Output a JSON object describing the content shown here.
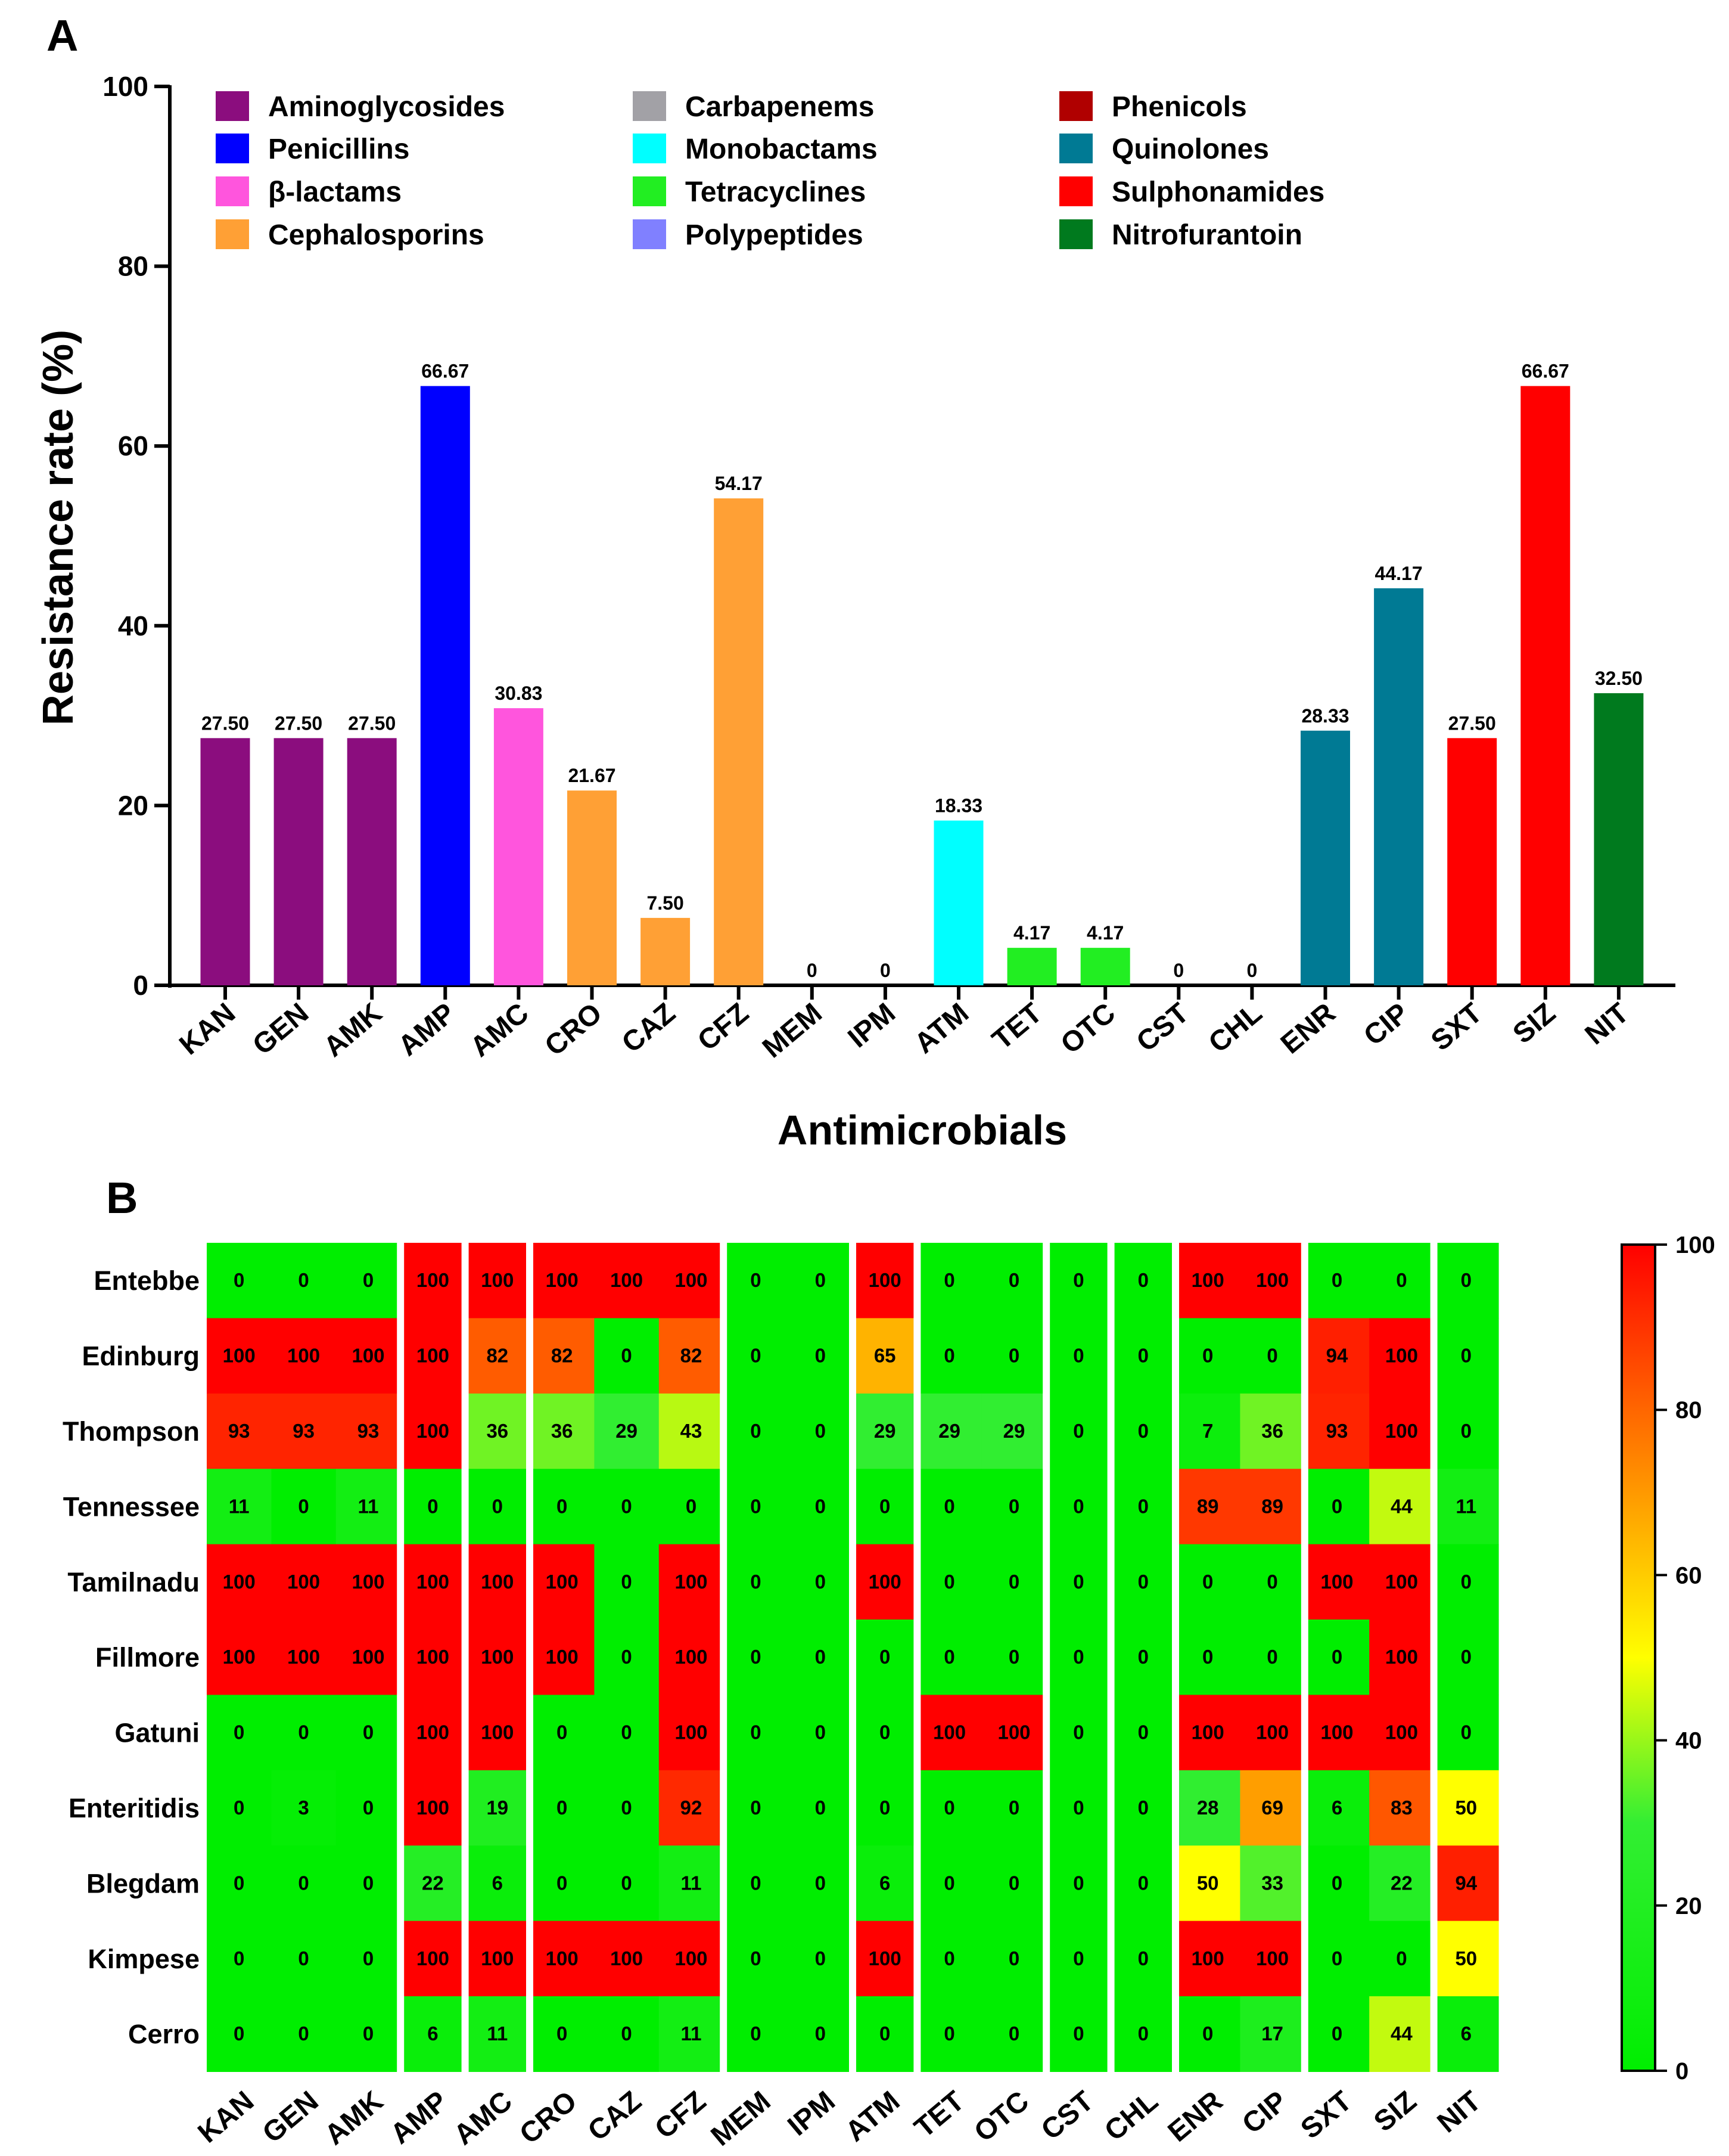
{
  "chart_data": [
    {
      "panel": "A",
      "type": "bar",
      "title": "",
      "xlabel": "Antimicrobials",
      "ylabel": "Resistance rate (%)",
      "ylim": [
        0,
        100
      ],
      "yticks": [
        0,
        20,
        40,
        60,
        80,
        100
      ],
      "grid": false,
      "categories": [
        "KAN",
        "GEN",
        "AMK",
        "AMP",
        "AMC",
        "CRO",
        "CAZ",
        "CFZ",
        "MEM",
        "IPM",
        "ATM",
        "TET",
        "OTC",
        "CST",
        "CHL",
        "ENR",
        "CIP",
        "SXT",
        "SIZ",
        "NIT"
      ],
      "values": [
        27.5,
        27.5,
        27.5,
        66.67,
        30.83,
        21.67,
        7.5,
        54.17,
        0,
        0,
        18.33,
        4.17,
        4.17,
        0,
        0,
        28.33,
        44.17,
        27.5,
        66.67,
        32.5
      ],
      "value_labels": [
        "27.50",
        "27.50",
        "27.50",
        "66.67",
        "30.83",
        "21.67",
        "7.50",
        "54.17",
        "0",
        "0",
        "18.33",
        "4.17",
        "4.17",
        "0",
        "0",
        "28.33",
        "44.17",
        "27.50",
        "66.67",
        "32.50"
      ],
      "classes": [
        "Aminoglycosides",
        "Aminoglycosides",
        "Aminoglycosides",
        "Penicillins",
        "β-lactams",
        "Cephalosporins",
        "Cephalosporins",
        "Cephalosporins",
        "Carbapenems",
        "Carbapenems",
        "Monobactams",
        "Tetracyclines",
        "Tetracyclines",
        "Polypeptides",
        "Phenicols",
        "Quinolones",
        "Quinolones",
        "Sulphonamides",
        "Sulphonamides",
        "Nitrofurantoin"
      ],
      "legend": [
        {
          "name": "Aminoglycosides",
          "color": "#8B0D7E"
        },
        {
          "name": "Penicillins",
          "color": "#0000FF"
        },
        {
          "name": "β-lactams",
          "color": "#FF55DD"
        },
        {
          "name": "Cephalosporins",
          "color": "#FFA035"
        },
        {
          "name": "Carbapenems",
          "color": "#A2A1A6"
        },
        {
          "name": "Monobactams",
          "color": "#00FFFF"
        },
        {
          "name": "Tetracyclines",
          "color": "#22EE22"
        },
        {
          "name": "Polypeptides",
          "color": "#8080FF"
        },
        {
          "name": "Phenicols",
          "color": "#B00000"
        },
        {
          "name": "Quinolones",
          "color": "#007A94"
        },
        {
          "name": "Sulphonamides",
          "color": "#FF0000"
        },
        {
          "name": "Nitrofurantoin",
          "color": "#007A1E"
        }
      ],
      "legend_placement": "top, three columns"
    },
    {
      "panel": "B",
      "type": "heatmap",
      "title": "",
      "columns": [
        "KAN",
        "GEN",
        "AMK",
        "AMP",
        "AMC",
        "CRO",
        "CAZ",
        "CFZ",
        "MEM",
        "IPM",
        "ATM",
        "TET",
        "OTC",
        "CST",
        "CHL",
        "ENR",
        "CIP",
        "SXT",
        "SIZ",
        "NIT"
      ],
      "rows": [
        "Entebbe",
        "Edinburg",
        "Thompson",
        "Tennessee",
        "Tamilnadu",
        "Fillmore",
        "Gatuni",
        "Enteritidis",
        "Blegdam",
        "Kimpese",
        "Cerro"
      ],
      "values": [
        [
          0,
          0,
          0,
          100,
          100,
          100,
          100,
          100,
          0,
          0,
          100,
          0,
          0,
          0,
          0,
          100,
          100,
          0,
          0,
          0
        ],
        [
          100,
          100,
          100,
          100,
          82,
          82,
          0,
          82,
          0,
          0,
          65,
          0,
          0,
          0,
          0,
          0,
          0,
          94,
          100,
          0
        ],
        [
          93,
          93,
          93,
          100,
          36,
          36,
          29,
          43,
          0,
          0,
          29,
          29,
          29,
          0,
          0,
          7,
          36,
          93,
          100,
          0
        ],
        [
          11,
          0,
          11,
          0,
          0,
          0,
          0,
          0,
          0,
          0,
          0,
          0,
          0,
          0,
          0,
          89,
          89,
          0,
          44,
          11
        ],
        [
          100,
          100,
          100,
          100,
          100,
          100,
          0,
          100,
          0,
          0,
          100,
          0,
          0,
          0,
          0,
          0,
          0,
          100,
          100,
          0
        ],
        [
          100,
          100,
          100,
          100,
          100,
          100,
          0,
          100,
          0,
          0,
          0,
          0,
          0,
          0,
          0,
          0,
          0,
          0,
          100,
          0
        ],
        [
          0,
          0,
          0,
          100,
          100,
          0,
          0,
          100,
          0,
          0,
          0,
          100,
          100,
          0,
          0,
          100,
          100,
          100,
          100,
          0
        ],
        [
          0,
          3,
          0,
          100,
          19,
          0,
          0,
          92,
          0,
          0,
          0,
          0,
          0,
          0,
          0,
          28,
          69,
          6,
          83,
          50
        ],
        [
          0,
          0,
          0,
          22,
          6,
          0,
          0,
          11,
          0,
          0,
          6,
          0,
          0,
          0,
          0,
          50,
          33,
          0,
          22,
          94
        ],
        [
          0,
          0,
          0,
          100,
          100,
          100,
          100,
          100,
          0,
          0,
          100,
          0,
          0,
          0,
          0,
          100,
          100,
          0,
          0,
          50
        ],
        [
          0,
          0,
          0,
          6,
          11,
          0,
          0,
          11,
          0,
          0,
          0,
          0,
          0,
          0,
          0,
          0,
          17,
          0,
          44,
          6
        ]
      ],
      "colorbar": {
        "range": [
          0,
          100
        ],
        "ticks": [
          0,
          20,
          40,
          60,
          80,
          100
        ],
        "colors": [
          "#00EE00",
          "#33EE33",
          "#FFFF00",
          "#FF9900",
          "#FF0000"
        ]
      }
    }
  ],
  "panels": {
    "a": "A",
    "b": "B"
  }
}
